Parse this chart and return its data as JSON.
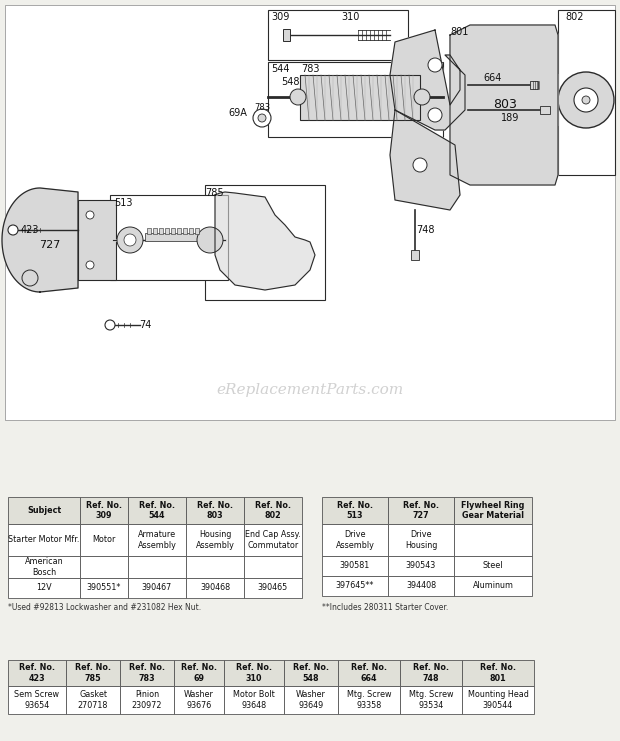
{
  "watermark": "eReplacementParts.com",
  "bg_color": "#f0f0eb",
  "table1_cells": [
    [
      "Subject",
      "Ref. No.\n309",
      "Ref. No.\n544",
      "Ref. No.\n803",
      "Ref. No.\n802"
    ],
    [
      "Starter Motor Mfr.",
      "Motor",
      "Armature\nAssembly",
      "Housing\nAssembly",
      "End Cap Assy.\nCommutator"
    ],
    [
      "American\nBosch",
      "",
      "",
      "",
      ""
    ],
    [
      "12V",
      "390551*",
      "390467",
      "390468",
      "390465"
    ]
  ],
  "table2_cells": [
    [
      "Ref. No.\n513",
      "Ref. No.\n727",
      "Flywheel Ring\nGear Material"
    ],
    [
      "Drive\nAssembly",
      "Drive\nHousing",
      ""
    ],
    [
      "390581",
      "390543",
      "Steel"
    ],
    [
      "397645**",
      "394408",
      "Aluminum"
    ]
  ],
  "table3_cells": [
    [
      "Ref. No.\n423",
      "Ref. No.\n785",
      "Ref. No.\n783",
      "Ref. No.\n69",
      "Ref. No.\n310",
      "Ref. No.\n548",
      "Ref. No.\n664",
      "Ref. No.\n748",
      "Ref. No.\n801"
    ],
    [
      "Sem Screw\n93654",
      "Gasket\n270718",
      "Pinion\n230972",
      "Washer\n93676",
      "Motor Bolt\n93648",
      "Washer\n93649",
      "Mtg. Screw\n93358",
      "Mtg. Screw\n93534",
      "Mounting Head\n390544"
    ]
  ],
  "footnote1": "*Used #92813 Lockwasher and #231082 Hex Nut.",
  "footnote2": "**Includes 280311 Starter Cover."
}
